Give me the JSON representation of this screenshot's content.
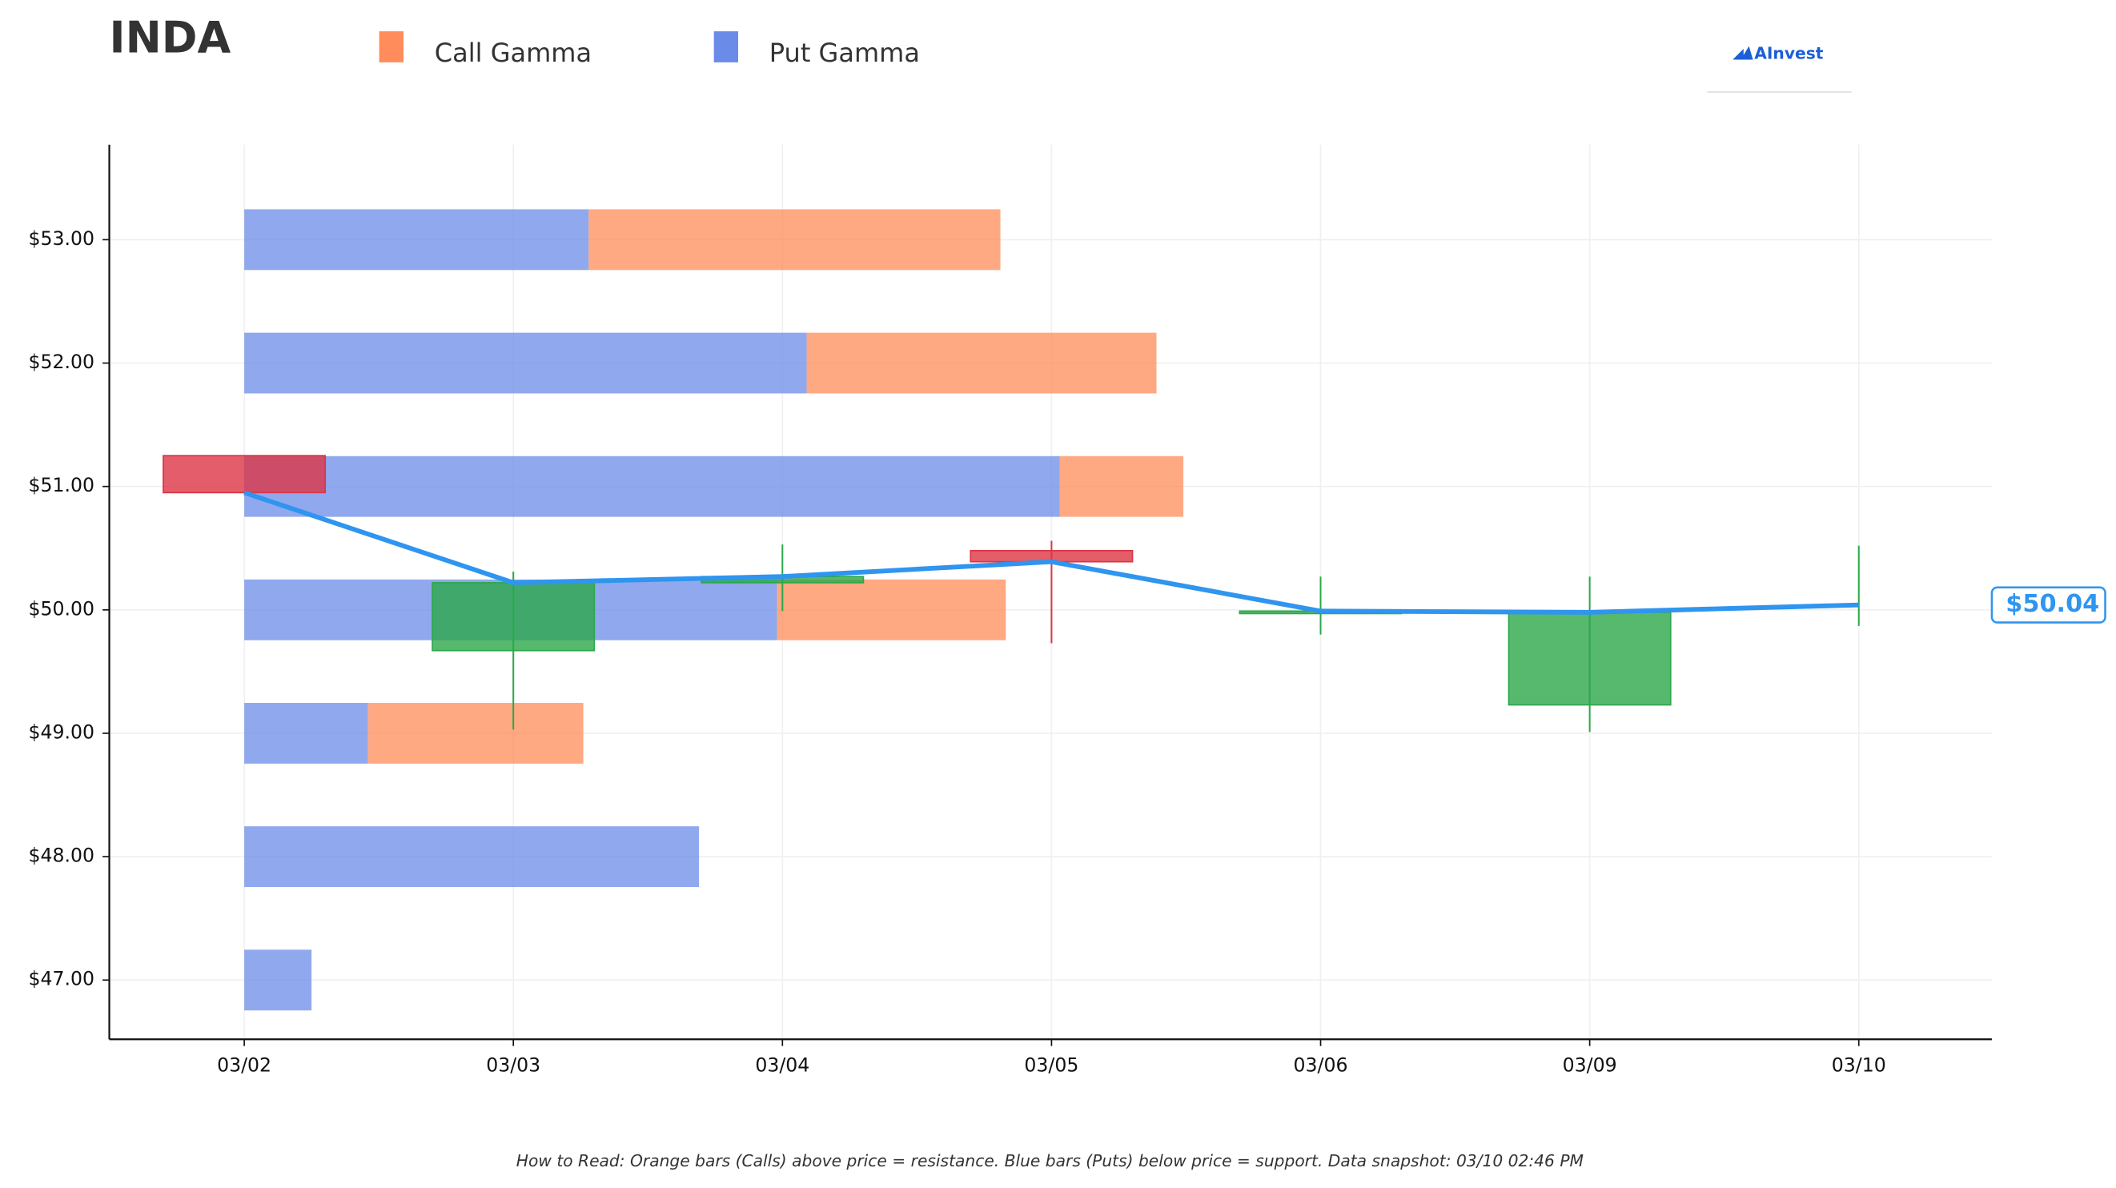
{
  "chart_data": {
    "type": "candlestick",
    "title": "INDA",
    "categories": [
      "03/02",
      "03/03",
      "03/04",
      "03/05",
      "03/06",
      "03/09",
      "03/10"
    ],
    "open": [
      51.25,
      49.67,
      50.22,
      50.48,
      49.97,
      49.23,
      50.04
    ],
    "high": [
      51.25,
      50.31,
      50.53,
      50.56,
      50.27,
      50.27,
      50.52
    ],
    "low": [
      50.95,
      49.03,
      49.99,
      49.73,
      49.8,
      49.01,
      49.87
    ],
    "close": [
      50.95,
      50.22,
      50.27,
      50.39,
      49.99,
      49.98,
      50.04
    ],
    "up_color": "#2ca84a",
    "down_color": "#dc3545",
    "line_color": "#2f95ef",
    "last_price_label": "$50.04",
    "ylim": [
      46.52,
      53.77
    ],
    "yticks": [
      {
        "value": 47,
        "label": "$47.00"
      },
      {
        "value": 48,
        "label": "$48.00"
      },
      {
        "value": 49,
        "label": "$49.00"
      },
      {
        "value": 50,
        "label": "$50.00"
      },
      {
        "value": 51,
        "label": "$51.00"
      },
      {
        "value": 52,
        "label": "$52.00"
      },
      {
        "value": 53,
        "label": "$53.00"
      }
    ],
    "grid": true,
    "gamma": {
      "strikes": [
        53,
        52,
        51,
        50,
        49,
        48,
        47
      ],
      "series": [
        {
          "name": "Call Gamma",
          "color": "#ff8c5a",
          "values": [
            1.53,
            1.3,
            0.46,
            0.85,
            0.8,
            0,
            0
          ]
        },
        {
          "name": "Put Gamma",
          "color": "#6b8be8",
          "values": [
            1.28,
            2.09,
            3.03,
            1.98,
            0.46,
            1.69,
            0.25
          ]
        }
      ]
    },
    "logo": "AInvest",
    "footnote": "How to Read: Orange bars (Calls) above price = resistance. Blue bars (Puts) below price = support. Data snapshot: 03/10 02:46 PM"
  }
}
